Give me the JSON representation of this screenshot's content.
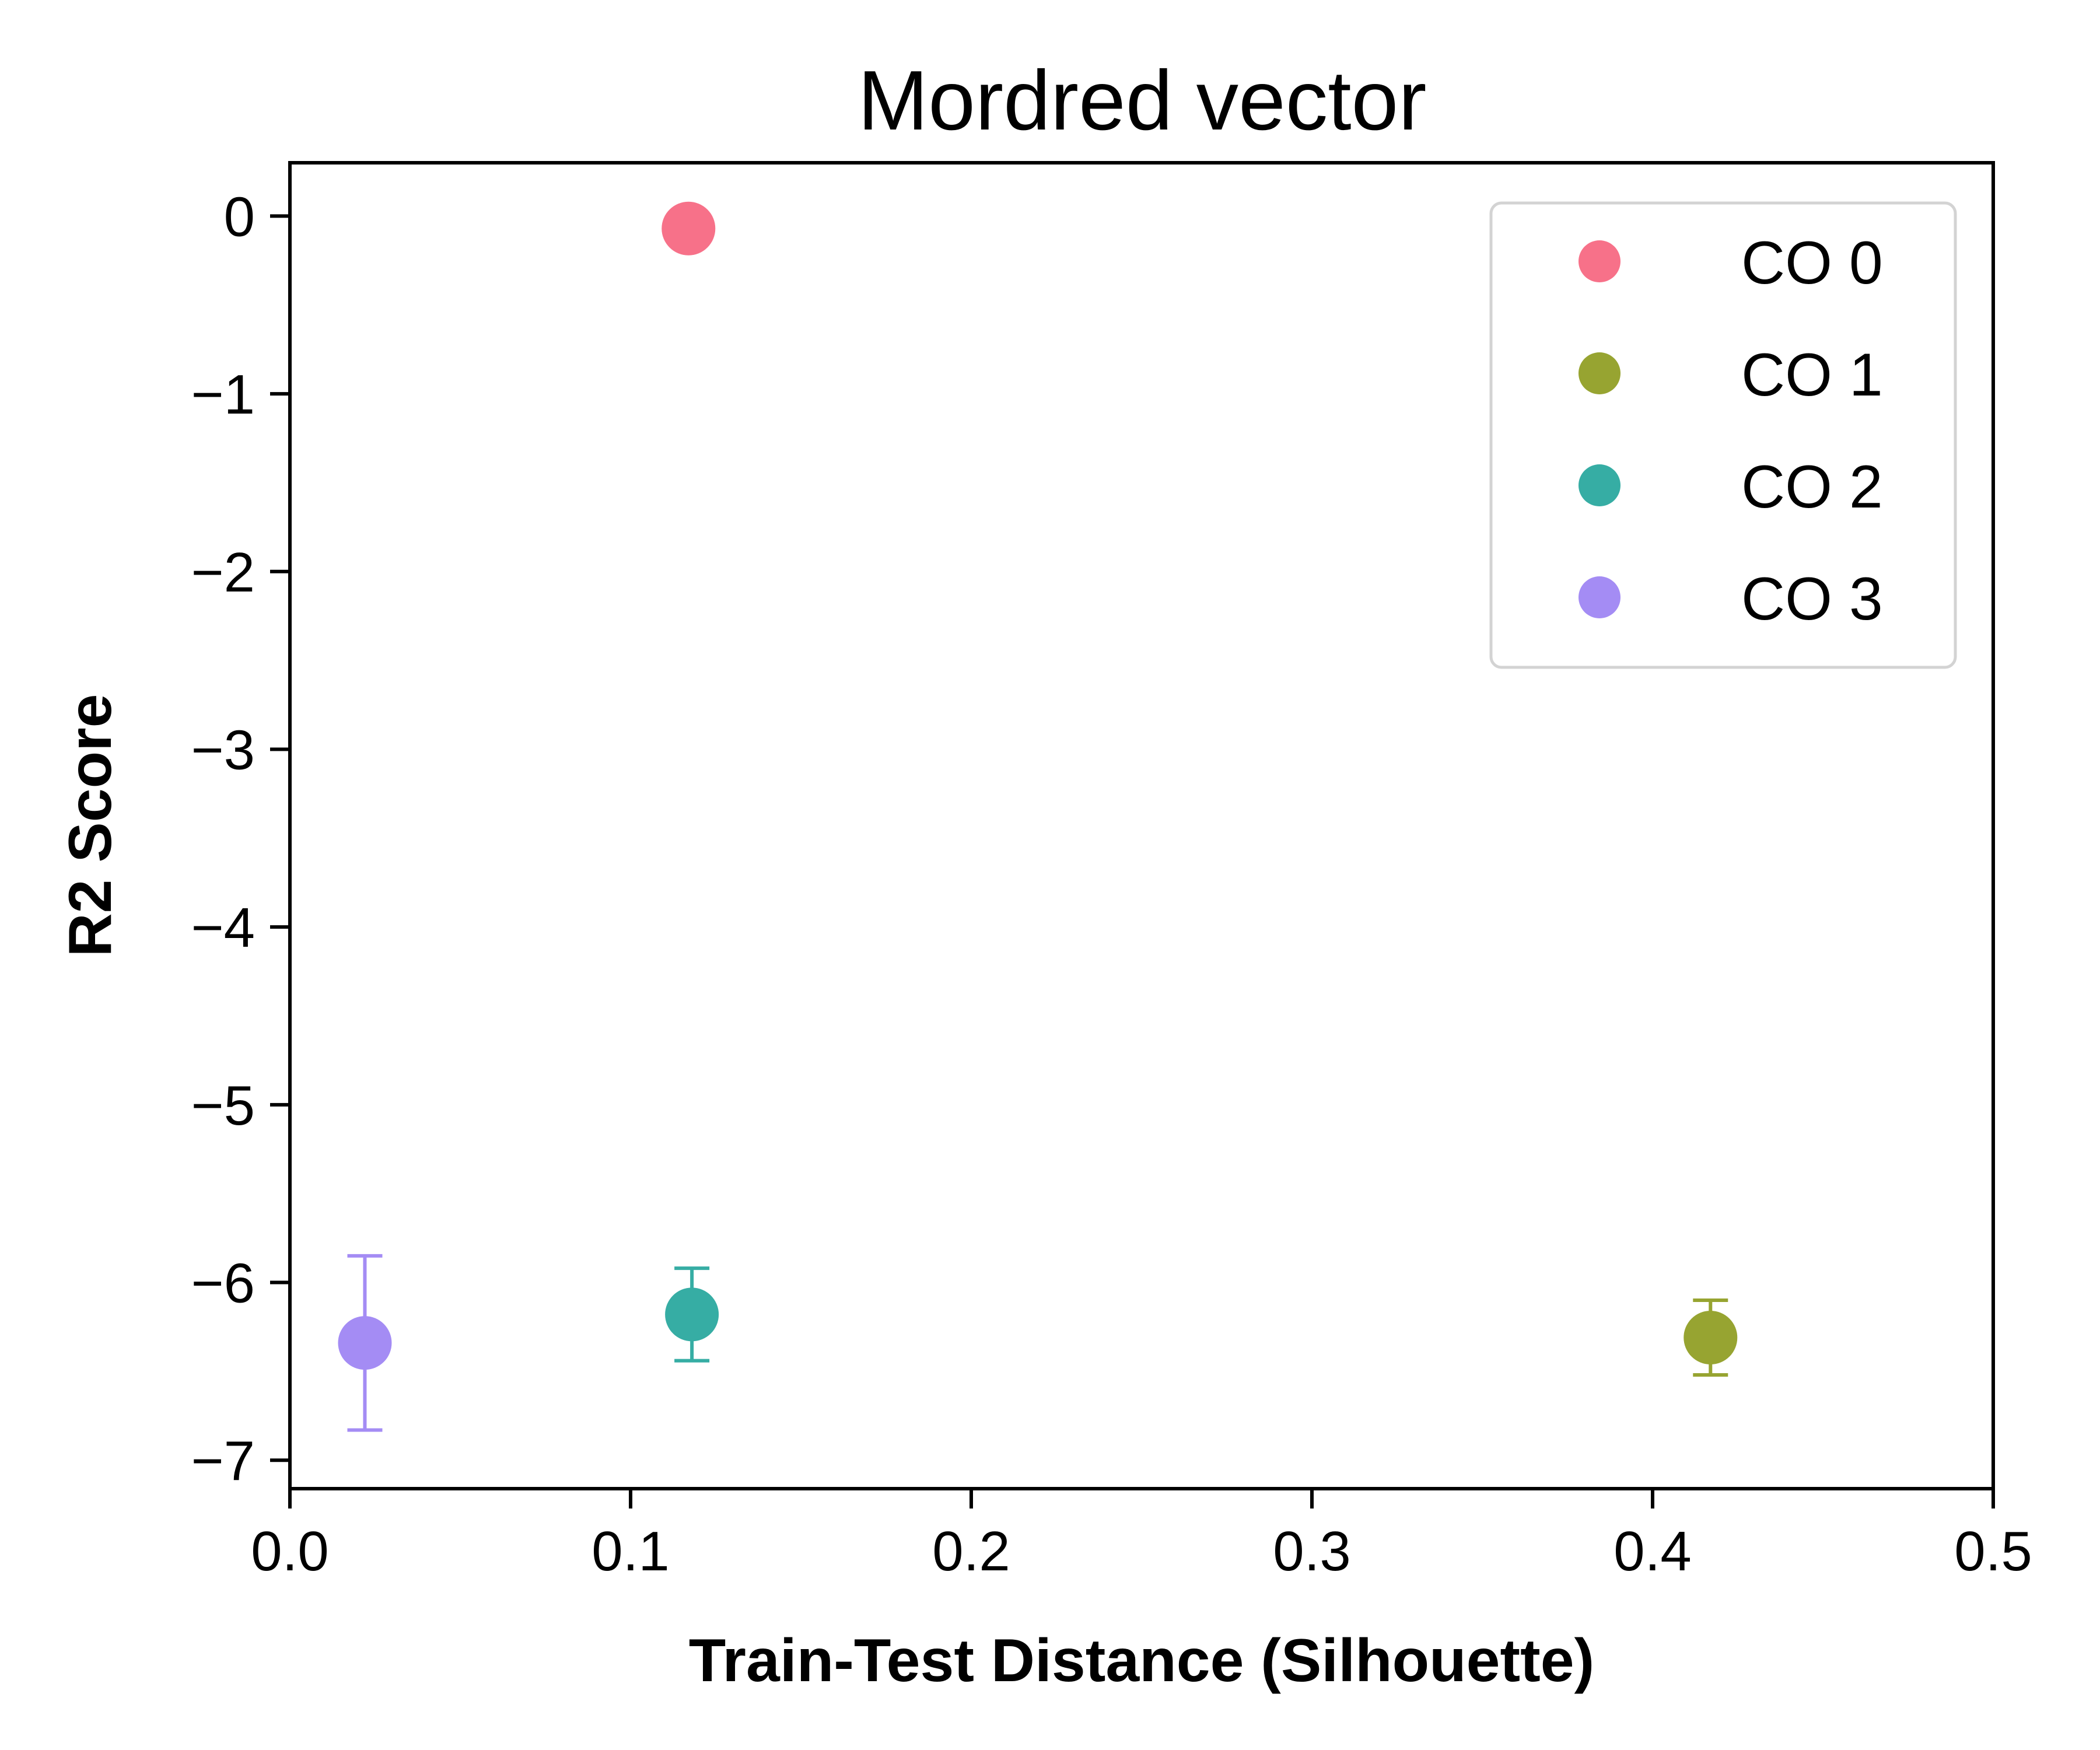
{
  "chart_data": {
    "type": "scatter",
    "title": "Mordred vector",
    "xlabel": "Train-Test Distance (Silhouette)",
    "ylabel": "R2 Score",
    "xlim": [
      0.0,
      0.5
    ],
    "ylim": [
      -7.16,
      0.3
    ],
    "x_ticks": [
      0.0,
      0.1,
      0.2,
      0.3,
      0.4,
      0.5
    ],
    "x_tick_labels": [
      "0.0",
      "0.1",
      "0.2",
      "0.3",
      "0.4",
      "0.5"
    ],
    "y_ticks": [
      0,
      -1,
      -2,
      -3,
      -4,
      -5,
      -6,
      -7
    ],
    "y_tick_labels": [
      "0",
      "−1",
      "−2",
      "−3",
      "−4",
      "−5",
      "−6",
      "−7"
    ],
    "grid": false,
    "legend_position": "top-right",
    "series": [
      {
        "name": "CO 0",
        "color": "#f77189",
        "x": 0.117,
        "y": -0.07,
        "error": 0.0
      },
      {
        "name": "CO 1",
        "color": "#97a431",
        "x": 0.417,
        "y": -6.31,
        "error": 0.21
      },
      {
        "name": "CO 2",
        "color": "#36ada4",
        "x": 0.118,
        "y": -6.18,
        "error": 0.26
      },
      {
        "name": "CO 3",
        "color": "#a48cf4",
        "x": 0.022,
        "y": -6.34,
        "error": 0.49
      }
    ]
  }
}
